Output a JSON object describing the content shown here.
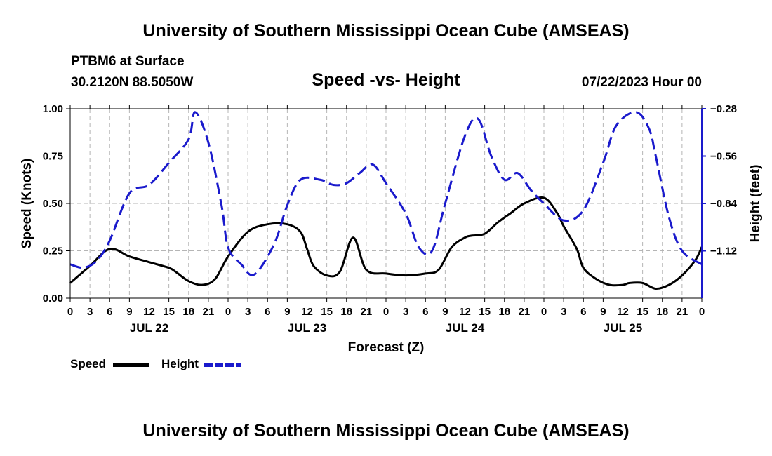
{
  "page": {
    "title_top": "University of Southern Mississippi Ocean Cube (AMSEAS)",
    "title_bottom": "University of Southern Mississippi Ocean Cube (AMSEAS)",
    "station_line1": "PTBM6 at Surface",
    "station_line2": "30.2120N  88.5050W",
    "plot_title": "Speed -vs- Height",
    "date_label": "07/22/2023 Hour 00"
  },
  "legend": {
    "speed_label": "Speed",
    "height_label": "Height",
    "speed_color": "#000000",
    "height_color": "#1a1acc"
  },
  "chart_data": {
    "type": "line",
    "title": "Speed -vs- Height",
    "xlabel": "Forecast (Z)",
    "ylabel": "Speed (Knots)",
    "y2label": "Height (feet)",
    "grid": true,
    "xlim": [
      0,
      96
    ],
    "ylim": [
      0,
      1.0
    ],
    "y2lim": [
      -1.4,
      -0.28
    ],
    "x_ticks": [
      0,
      3,
      6,
      9,
      12,
      15,
      18,
      21,
      24,
      27,
      30,
      33,
      36,
      39,
      42,
      45,
      48,
      51,
      54,
      57,
      60,
      63,
      66,
      69,
      72,
      75,
      78,
      81,
      84,
      87,
      90,
      93,
      96
    ],
    "x_tick_labels": [
      "0",
      "3",
      "6",
      "9",
      "12",
      "15",
      "18",
      "21",
      "0",
      "3",
      "6",
      "9",
      "12",
      "15",
      "18",
      "21",
      "0",
      "3",
      "6",
      "9",
      "12",
      "15",
      "18",
      "21",
      "0",
      "3",
      "6",
      "9",
      "12",
      "15",
      "18",
      "21",
      "0"
    ],
    "y_ticks": [
      0,
      0.25,
      0.5,
      0.75,
      1.0
    ],
    "y_tick_labels": [
      "0.00",
      "0.25",
      "0.50",
      "0.75",
      "1.00"
    ],
    "y2_ticks": [
      -1.12,
      -0.84,
      -0.56,
      -0.28
    ],
    "y2_tick_labels": [
      "−1.12",
      "−0.84",
      "−0.56",
      "−0.28"
    ],
    "day_labels": [
      {
        "x": 12,
        "label": "JUL 22"
      },
      {
        "x": 36,
        "label": "JUL 23"
      },
      {
        "x": 60,
        "label": "JUL 24"
      },
      {
        "x": 84,
        "label": "JUL 25"
      }
    ],
    "series": [
      {
        "name": "Speed",
        "axis": "left",
        "style": "solid",
        "color": "#000000",
        "x": [
          0,
          3,
          6,
          9,
          12,
          15,
          16,
          18,
          20,
          22,
          24,
          27,
          30,
          33,
          35,
          36,
          37,
          39,
          41,
          43,
          45,
          48,
          51,
          54,
          56,
          58,
          60,
          61,
          63,
          65,
          67,
          69,
          72,
          74,
          75,
          77,
          78,
          80,
          82,
          84,
          85,
          87,
          89,
          91,
          93,
          95,
          96
        ],
        "y": [
          0.08,
          0.17,
          0.26,
          0.22,
          0.19,
          0.16,
          0.14,
          0.09,
          0.07,
          0.1,
          0.22,
          0.35,
          0.39,
          0.39,
          0.35,
          0.26,
          0.17,
          0.12,
          0.14,
          0.32,
          0.15,
          0.13,
          0.12,
          0.13,
          0.15,
          0.27,
          0.32,
          0.33,
          0.34,
          0.4,
          0.45,
          0.5,
          0.53,
          0.45,
          0.38,
          0.26,
          0.16,
          0.1,
          0.07,
          0.07,
          0.08,
          0.08,
          0.05,
          0.07,
          0.12,
          0.2,
          0.27
        ]
      },
      {
        "name": "Height",
        "axis": "right",
        "style": "dashed",
        "color": "#1a1acc",
        "x": [
          0,
          2,
          4,
          6,
          9,
          12,
          15,
          18,
          19,
          21,
          23,
          24,
          26,
          28,
          31,
          33,
          35,
          38,
          40,
          42,
          44,
          46,
          48,
          51,
          53,
          55,
          57,
          60,
          62,
          64,
          66,
          68,
          70,
          72,
          75,
          78,
          81,
          83,
          86,
          88,
          89,
          91,
          93,
          96
        ],
        "y": [
          -1.2,
          -1.22,
          -1.18,
          -1.06,
          -0.78,
          -0.73,
          -0.6,
          -0.46,
          -0.3,
          -0.48,
          -0.85,
          -1.1,
          -1.2,
          -1.26,
          -1.08,
          -0.85,
          -0.7,
          -0.7,
          -0.73,
          -0.72,
          -0.66,
          -0.61,
          -0.72,
          -0.9,
          -1.1,
          -1.12,
          -0.84,
          -0.44,
          -0.34,
          -0.56,
          -0.7,
          -0.66,
          -0.76,
          -0.84,
          -0.94,
          -0.88,
          -0.6,
          -0.38,
          -0.3,
          -0.4,
          -0.56,
          -0.92,
          -1.12,
          -1.2
        ]
      }
    ]
  }
}
